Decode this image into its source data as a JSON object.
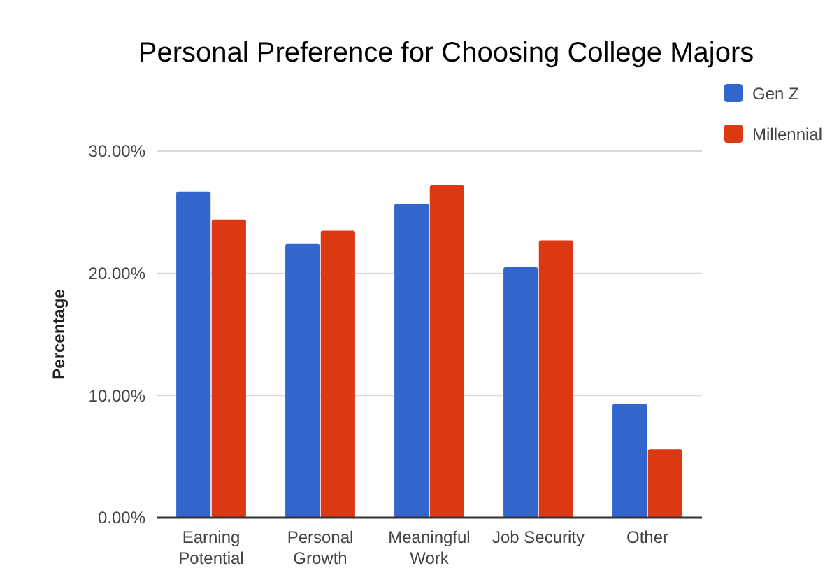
{
  "chart_data": {
    "type": "bar",
    "title": "Personal Preference for Choosing College Majors",
    "ylabel": "Percentage",
    "categories": [
      "Earning Potential",
      "Personal Growth",
      "Meaningful Work",
      "Job Security",
      "Other"
    ],
    "series": [
      {
        "name": "Gen Z",
        "color": "#3366cc",
        "values": [
          26.7,
          22.4,
          25.7,
          20.5,
          9.3
        ]
      },
      {
        "name": "Millennial",
        "color": "#dc3912",
        "values": [
          24.4,
          23.5,
          27.2,
          22.7,
          5.6
        ]
      }
    ],
    "ylim": [
      0,
      30
    ],
    "yticks": [
      {
        "value": 0,
        "label": "0.00%"
      },
      {
        "value": 10,
        "label": "10.00%"
      },
      {
        "value": 20,
        "label": "20.00%"
      },
      {
        "value": 30,
        "label": "30.00%"
      }
    ],
    "grid": "y",
    "legend": "right"
  }
}
